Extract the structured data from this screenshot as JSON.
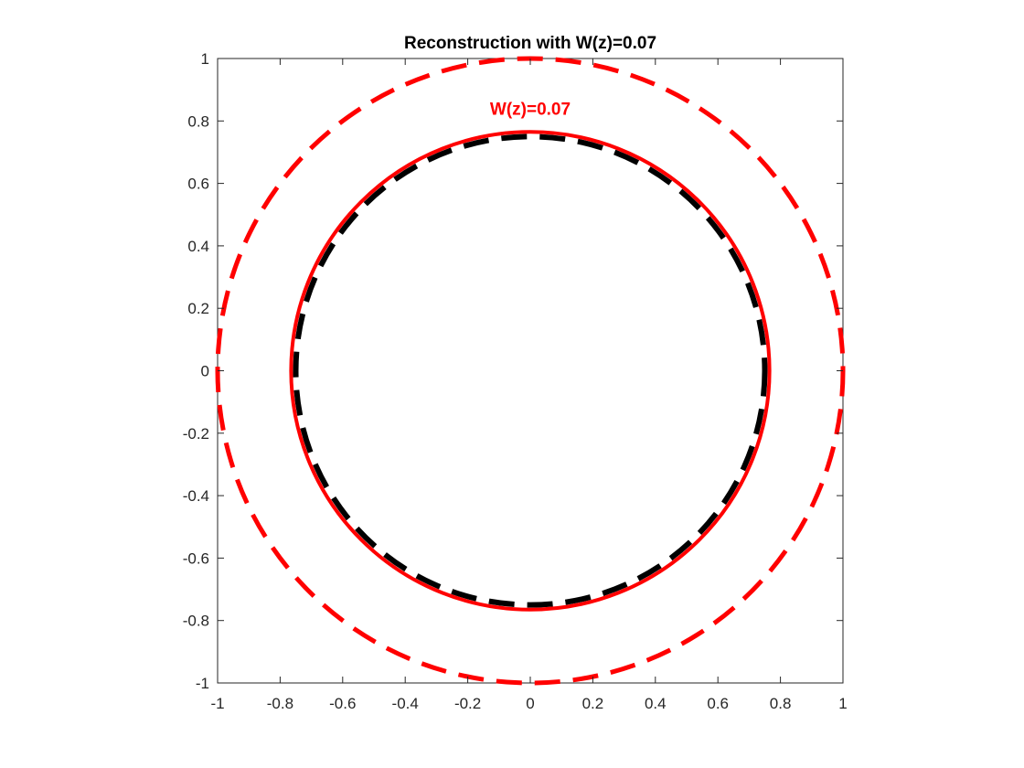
{
  "chart_data": {
    "type": "line",
    "title": "Reconstruction with W(z)=0.07",
    "xlabel": "",
    "ylabel": "",
    "xlim": [
      -1,
      1
    ],
    "ylim": [
      -1,
      1
    ],
    "xticks": [
      -1,
      -0.8,
      -0.6,
      -0.4,
      -0.2,
      0,
      0.2,
      0.4,
      0.6,
      0.8,
      1
    ],
    "yticks": [
      -1,
      -0.8,
      -0.6,
      -0.4,
      -0.2,
      0,
      0.2,
      0.4,
      0.6,
      0.8,
      1
    ],
    "xtick_labels": [
      "-1",
      "-0.8",
      "-0.6",
      "-0.4",
      "-0.2",
      "0",
      "0.2",
      "0.4",
      "0.6",
      "0.8",
      "1"
    ],
    "ytick_labels": [
      "-1",
      "-0.8",
      "-0.6",
      "-0.4",
      "-0.2",
      "0",
      "0.2",
      "0.4",
      "0.6",
      "0.8",
      "1"
    ],
    "grid": false,
    "legend": "none",
    "series": [
      {
        "center": [
          0,
          0
        ],
        "radius": 1.0,
        "color": "#ff0000",
        "style": "dashed"
      },
      {
        "center": [
          0,
          0
        ],
        "radius": 0.75,
        "color": "#000000",
        "style": "dashed"
      },
      {
        "center": [
          0,
          0
        ],
        "radius": 0.765,
        "color": "#ff0000",
        "style": "solid"
      }
    ],
    "annotations": [
      {
        "text": "W(z)=0.07",
        "x": 0.0,
        "y": 0.82,
        "color": "#ff0000"
      }
    ]
  }
}
